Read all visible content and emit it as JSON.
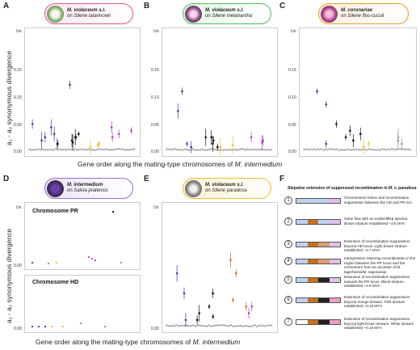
{
  "panels": {
    "A": {
      "letter": "A",
      "species": "M. violaceum s.l.",
      "host_prefix": "on ",
      "host": "Silene tatarinowii",
      "color": "#e0559a"
    },
    "B": {
      "letter": "B",
      "species": "M. violaceum s.l.",
      "host_prefix": "on ",
      "host": "Silene melanantha",
      "color": "#4fbf5a"
    },
    "C": {
      "letter": "C",
      "species": "M. coronariae",
      "host_prefix": "on ",
      "host": "Silene flos-cuculi",
      "color": "#e8a02a"
    },
    "D": {
      "letter": "D",
      "species": "M. intermedium",
      "host_prefix": "on ",
      "host": "Salvia pratensis",
      "color": "#9b6bd6"
    },
    "E": {
      "letter": "E",
      "species": "M. violaceum s.l.",
      "host_prefix": "on ",
      "host": "Silene paradoxa",
      "color": "#e8c030"
    },
    "F": {
      "letter": "F"
    }
  },
  "axis": {
    "ylabel_top": "a₁ - a₂ synonymous divergence",
    "ylabel_bottom": "a₁ - a₂ synonymous divergence",
    "xlabel_top": "Gene order along the mating-type chromosomes of ",
    "xlabel_top_species": "M. intermedium",
    "xlabel_bottom": "Gene order along the mating-type chromosomes of ",
    "xlabel_bottom_species": "M. intermedium",
    "un": "Un.",
    "ticks": [
      "0.00",
      "0.05",
      "0.10",
      "0.15"
    ]
  },
  "chromosomes": {
    "pr": "Chromosome PR",
    "hd": "Chromosome HD"
  },
  "stepwise": {
    "title": "Stepwise extension of suppressed recombination in ",
    "title_species": "M. v. paradoxa",
    "steps": [
      {
        "n": "1",
        "text": "Chromosome fusion and recombination suppression between the HD and PR loci"
      },
      {
        "n": "2",
        "text": "Gene flow with an unidentified species. Brown stratum established ~3.8 MYA"
      },
      {
        "n": "3",
        "text": "Extension of recombination suppression beyond HD locus. Light brown stratum established ~2.7 MYA"
      },
      {
        "n": "4",
        "text": "Introgression restoring recombination in the region between the PR locus and the centromere from an ancestor of M. lagerheimii/M. saponariae"
      },
      {
        "n": "5",
        "text": "Extension of recombination suppression towards the PR locus. Black stratum established ~2.6 MYA"
      },
      {
        "n": "6",
        "text": "Extension of recombination suppression beyond orange stratum. Pink stratum established ~0.18 MYA"
      },
      {
        "n": "7",
        "text": "Extension of recombination suppression beyond light brown stratum. White stratum established ~0.18 MYA"
      }
    ]
  },
  "chart_data": [
    {
      "type": "scatter",
      "panel": "A",
      "ylim": [
        0,
        0.17
      ],
      "series": [
        {
          "color": "#3a3aa8",
          "values": [
            0.04,
            0.02,
            0.015,
            0.035,
            0.01,
            0.025,
            0.1
          ]
        },
        {
          "color": "#111111",
          "values": [
            0.01,
            0.015,
            0.02,
            0.012,
            0.02,
            0.025
          ]
        },
        {
          "color": "#e8c030",
          "values": [
            0.005,
            0.01,
            0.008
          ]
        },
        {
          "color": "#b040c0",
          "values": [
            0.035,
            0.02,
            0.025,
            0.03
          ]
        }
      ]
    },
    {
      "type": "scatter",
      "panel": "B",
      "ylim": [
        0,
        0.17
      ],
      "series": [
        {
          "color": "#3a3aa8",
          "values": [
            0.09,
            0.06,
            0.005,
            0.01
          ]
        },
        {
          "color": "#111111",
          "values": [
            0.02,
            0.015,
            0.005,
            0.01,
            0.02
          ]
        },
        {
          "color": "#e8c030",
          "values": [
            0.005,
            0.008
          ]
        },
        {
          "color": "#b040c0",
          "values": [
            0.02,
            0.012,
            0.015
          ]
        }
      ]
    },
    {
      "type": "scatter",
      "panel": "C",
      "ylim": [
        0,
        0.17
      ],
      "series": [
        {
          "color": "#3a3aa8",
          "values": [
            0.09,
            0.07,
            0.01
          ]
        },
        {
          "color": "#111111",
          "values": [
            0.04,
            0.03,
            0.015,
            0.02,
            0.025
          ]
        },
        {
          "color": "#e8c030",
          "values": [
            0.005,
            0.01
          ]
        },
        {
          "color": "#999999",
          "values": [
            0.02,
            0.015,
            0.01
          ]
        }
      ]
    },
    {
      "type": "scatter",
      "panel": "E",
      "ylim": [
        0,
        0.17
      ],
      "series": [
        {
          "color": "#3a3aa8",
          "values": [
            0.08,
            0.05,
            0.01
          ]
        },
        {
          "color": "#111111",
          "values": [
            0.01,
            0.02,
            0.015,
            0.03,
            0.05
          ]
        },
        {
          "color": "#c87020",
          "values": [
            0.1,
            0.08,
            0.04,
            0.03
          ]
        },
        {
          "color": "#b040c0",
          "values": [
            0.03,
            0.02
          ]
        }
      ]
    }
  ]
}
